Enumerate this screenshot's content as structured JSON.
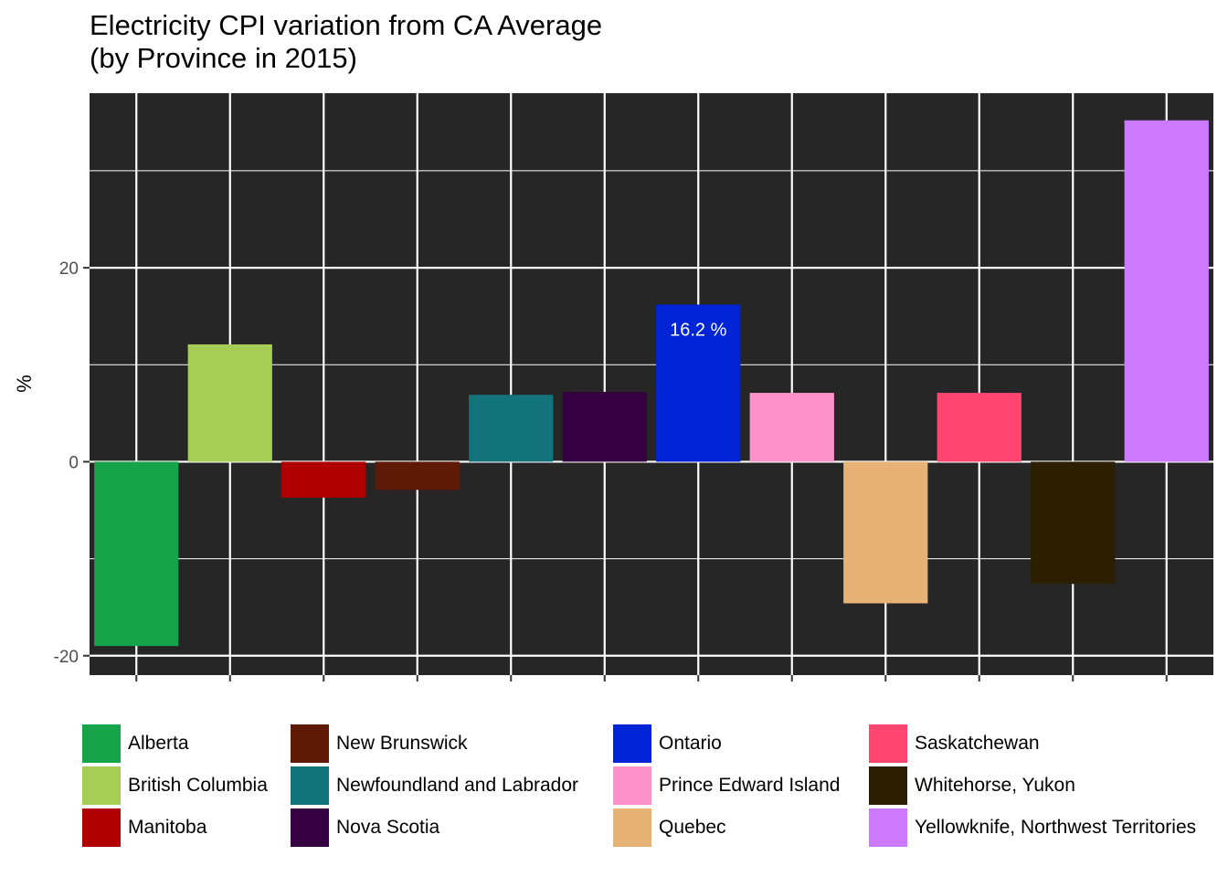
{
  "chart_data": {
    "type": "bar",
    "title": "Electricity CPI variation from CA Average\n(by Province in 2015)",
    "xlabel": "",
    "ylabel": "%",
    "ylim": [
      -22,
      38
    ],
    "yticks": [
      -20,
      0,
      20
    ],
    "grid": true,
    "legend_position": "bottom",
    "categories": [
      "Alberta",
      "British Columbia",
      "Manitoba",
      "New Brunswick",
      "Newfoundland and Labrador",
      "Nova Scotia",
      "Ontario",
      "Prince Edward Island",
      "Quebec",
      "Saskatchewan",
      "Whitehorse, Yukon",
      "Yellowknife, Northwest Territories"
    ],
    "values": [
      -19.0,
      12.1,
      -3.7,
      -2.9,
      6.9,
      7.2,
      16.2,
      7.1,
      -14.6,
      7.1,
      -12.6,
      35.2
    ],
    "colors": [
      "#17A34A",
      "#A6CE56",
      "#B00000",
      "#5E1A06",
      "#13737A",
      "#350042",
      "#0024D6",
      "#FD92CB",
      "#E7B276",
      "#FF4570",
      "#2C1E00",
      "#CD79FF"
    ],
    "annotations": [
      {
        "category": "Ontario",
        "text": "16.2 %"
      }
    ]
  }
}
